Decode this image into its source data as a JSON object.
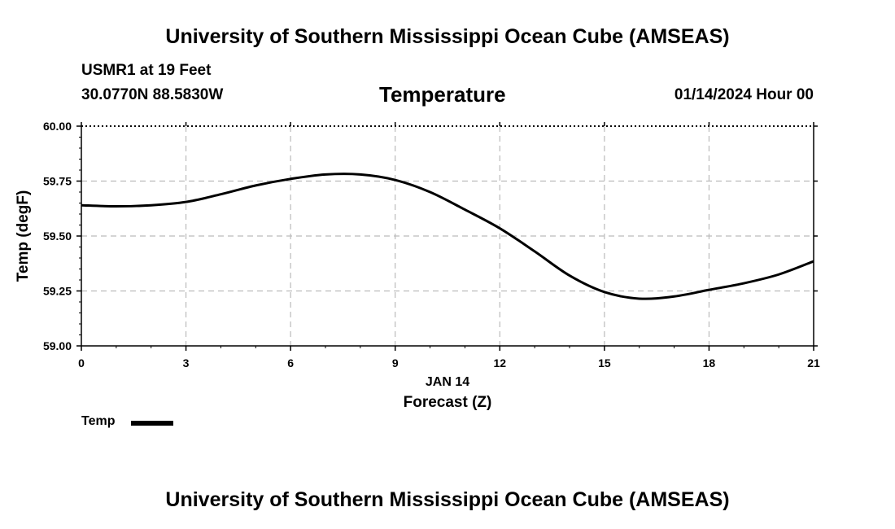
{
  "title": "University of Southern Mississippi Ocean Cube (AMSEAS)",
  "footer_title": "University of Southern Mississippi Ocean Cube (AMSEAS)",
  "station": "USMR1 at 19 Feet",
  "coordinates": "30.0770N  88.5830W",
  "variable": "Temperature",
  "datetime": "01/14/2024 Hour 00",
  "legend": {
    "label": "Temp"
  },
  "colors": {
    "line": "#000000",
    "grid": "#bbbbbb"
  },
  "chart_data": {
    "type": "line",
    "title": "Temperature",
    "xlabel": "Forecast (Z)",
    "xlabel_date": "JAN 14",
    "ylabel": "Temp (degF)",
    "xlim": [
      0,
      21
    ],
    "ylim": [
      59.0,
      60.0
    ],
    "x_ticks": [
      0,
      3,
      6,
      9,
      12,
      15,
      18,
      21
    ],
    "x_tick_labels": [
      "0",
      "3",
      "6",
      "9",
      "12",
      "15",
      "18",
      "21"
    ],
    "y_ticks": [
      59.0,
      59.25,
      59.5,
      59.75,
      60.0
    ],
    "y_tick_labels": [
      "59.00",
      "59.25",
      "59.50",
      "59.75",
      "60.00"
    ],
    "grid": true,
    "series": [
      {
        "name": "Temp",
        "x": [
          0,
          1,
          2,
          3,
          4,
          5,
          6,
          7,
          8,
          9,
          10,
          11,
          12,
          13,
          14,
          15,
          16,
          17,
          18,
          19,
          20,
          21
        ],
        "values": [
          59.64,
          59.635,
          59.64,
          59.655,
          59.69,
          59.73,
          59.76,
          59.78,
          59.78,
          59.755,
          59.7,
          59.62,
          59.535,
          59.43,
          59.32,
          59.245,
          59.215,
          59.225,
          59.255,
          59.285,
          59.325,
          59.385
        ]
      }
    ]
  }
}
